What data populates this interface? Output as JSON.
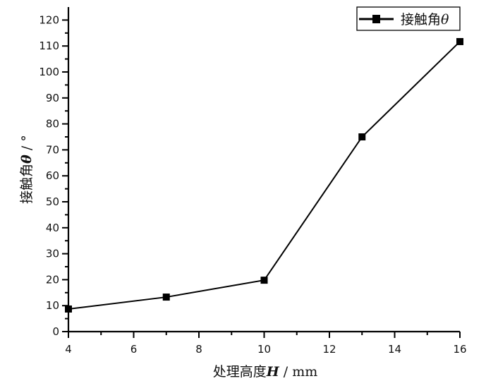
{
  "chart_data": {
    "type": "line",
    "title": "",
    "xlabel": "处理高度H / mm",
    "ylabel": "接触角θ / °",
    "xlim": [
      4,
      16
    ],
    "ylim": [
      0,
      125
    ],
    "x_ticks": [
      4,
      6,
      8,
      10,
      12,
      14,
      16
    ],
    "y_ticks": [
      0,
      10,
      20,
      30,
      40,
      50,
      60,
      70,
      80,
      90,
      100,
      110,
      120
    ],
    "grid": false,
    "legend_position": "top-right",
    "series": [
      {
        "name": "接触角θ",
        "marker": "square",
        "color": "#000000",
        "x": [
          4,
          7,
          10,
          13,
          16
        ],
        "values": [
          8.7,
          13.3,
          19.8,
          75,
          111.7
        ]
      }
    ]
  },
  "labels": {
    "xlabel_main": "处理高度",
    "xlabel_var": "H",
    "xlabel_unit": " / mm",
    "ylabel_main": "接触角",
    "ylabel_var": "θ",
    "ylabel_unit": " / °",
    "legend_main": "接触角",
    "legend_var": "θ"
  }
}
